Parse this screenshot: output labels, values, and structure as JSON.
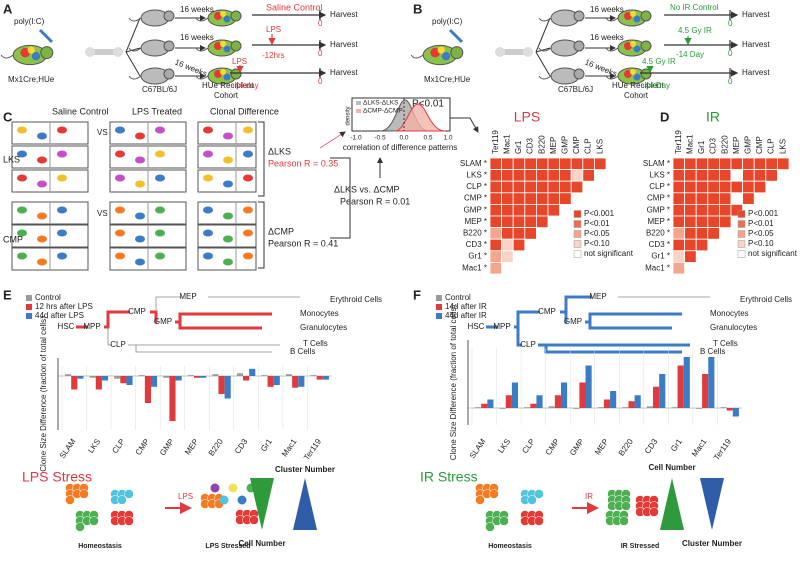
{
  "panel_a": {
    "label": "A",
    "injection": "poly(I:C)",
    "donor": "Mx1Cre;HUe",
    "durations": [
      "16 weeks",
      "16 weeks",
      "16 weeks"
    ],
    "strain": "C67BL/6J",
    "recipient": [
      "HUe Recipient",
      "Cohort"
    ],
    "arms": [
      {
        "treatment": "Saline Control",
        "time": "0",
        "harvest": "Harvest"
      },
      {
        "treatment": "LPS",
        "offset": "-12hrs",
        "time": "0",
        "harvest": "Harvest"
      },
      {
        "treatment": "LPS",
        "offset": "-44 day",
        "time": "0",
        "harvest": "Harvest"
      }
    ]
  },
  "panel_b": {
    "label": "B",
    "injection": "poly(I:C)",
    "donor": "Mx1Cre;HUe",
    "durations": [
      "16 weeks",
      "16 weeks",
      "16 weeks"
    ],
    "strain": "C67BL/6J",
    "recipient": [
      "HUe Recipient",
      "Cohort"
    ],
    "arms": [
      {
        "treatment": "No IR Control",
        "time": "0",
        "harvest": "Harvest"
      },
      {
        "treatment": "4.5 Gy IR",
        "offset": "-14 Day",
        "time": "0",
        "harvest": "Harvest"
      },
      {
        "treatment": "4.5 Gy IR",
        "offset": "-44 Day",
        "time": "0",
        "harvest": "Harvest"
      }
    ]
  },
  "panel_c": {
    "label": "C",
    "columns": [
      "Saline Control",
      "LPS Treated",
      "Clonal Difference"
    ],
    "rows": [
      "LKS",
      "CMP"
    ],
    "vs": [
      "VS",
      "VS"
    ],
    "lks_delta": "ΔLKS",
    "lks_r": "Pearson R = 0.35",
    "cmp_delta": "ΔCMP",
    "cmp_r": "Pearson R = 0.41",
    "cross": "ΔLKS vs. ΔCMP",
    "cross_r": "Pearson R = 0.01",
    "inset": {
      "y_label": "density",
      "legend": [
        "ΔLKS-ΔLKS",
        "ΔCMP-ΔCMP"
      ],
      "p": "P<0.01",
      "ticks": [
        "-1.0",
        "-0.5",
        "0.0",
        "0.5",
        "1.0"
      ],
      "x_label": "correlation of difference patterns"
    }
  },
  "panel_d": {
    "label": "D"
  },
  "significance_legend": [
    "P<0.001",
    "P<0.01",
    "P<0.05",
    "P<0.10",
    "not significant"
  ],
  "heatmaps": [
    {
      "title": "LPS",
      "rows": [
        "SLAM *",
        "LKS *",
        "CLP *",
        "CMP *",
        "GMP *",
        "MEP *",
        "B220 *",
        "CD3 *",
        "Gr1 *",
        "Mac1 *"
      ],
      "columns": [
        "Ter119",
        "Mac1",
        "Gr1",
        "CD3",
        "B220",
        "MEP",
        "GMP",
        "CMP",
        "CLP",
        "LKS"
      ],
      "cells": [
        [
          0,
          0,
          0,
          0,
          0,
          0,
          0,
          0,
          0,
          0
        ],
        [
          0,
          0,
          0,
          0,
          0,
          0,
          0,
          3,
          0
        ],
        [
          0,
          0,
          0,
          0,
          0,
          0,
          0,
          0
        ],
        [
          0,
          0,
          0,
          0,
          0,
          0,
          0
        ],
        [
          0,
          0,
          0,
          0,
          0,
          0
        ],
        [
          0,
          0,
          0,
          0,
          0
        ],
        [
          2,
          0,
          0,
          0
        ],
        [
          0,
          3,
          0
        ],
        [
          2,
          3
        ],
        [
          2
        ]
      ]
    },
    {
      "title": "IR",
      "rows": [
        "SLAM *",
        "LKS *",
        "CLP *",
        "CMP *",
        "GMP *",
        "MEP *",
        "B220 *",
        "CD3 *",
        "Gr1 *",
        "Mac1 *"
      ],
      "columns": [
        "Ter119",
        "Mac1",
        "Gr1",
        "CD3",
        "B220",
        "MEP",
        "GMP",
        "CMP",
        "CLP",
        "LKS"
      ],
      "cells": [
        [
          0,
          0,
          0,
          0,
          0,
          0,
          0,
          0,
          0,
          0
        ],
        [
          0,
          0,
          0,
          0,
          0,
          4,
          0,
          0,
          0
        ],
        [
          0,
          0,
          0,
          0,
          0,
          0,
          0,
          0
        ],
        [
          0,
          0,
          0,
          0,
          0,
          4,
          0
        ],
        [
          0,
          0,
          0,
          0,
          0,
          0
        ],
        [
          0,
          0,
          0,
          0,
          0
        ],
        [
          2,
          0,
          0,
          0
        ],
        [
          0,
          0,
          0
        ],
        [
          3,
          0
        ],
        [
          2
        ]
      ]
    }
  ],
  "chart_data": [
    {
      "type": "bar",
      "panel": "E",
      "y_label": "Clone Size Difference (fraction of total cells)",
      "categories": [
        "SLAM",
        "LKS",
        "CLP",
        "CMP",
        "GMP",
        "MEP",
        "B220",
        "CD3",
        "Gr1",
        "Mac1",
        "Ter119"
      ],
      "ylim": [
        -0.06,
        0.02
      ],
      "series": [
        {
          "name": "Control",
          "color": "#9a9a9a",
          "values": [
            0.002,
            -0.002,
            -0.003,
            0.001,
            -0.002,
            0.001,
            0.002,
            0.003,
            0.001,
            0.002,
            0.001
          ]
        },
        {
          "name": "12 hrs after LPS",
          "color": "#e0393e",
          "values": [
            -0.015,
            -0.015,
            -0.008,
            -0.03,
            -0.05,
            -0.002,
            -0.02,
            -0.005,
            -0.012,
            -0.013,
            -0.004
          ]
        },
        {
          "name": "44d after LPS",
          "color": "#3b7cc4",
          "values": [
            -0.003,
            -0.005,
            -0.01,
            -0.012,
            -0.005,
            -0.002,
            -0.025,
            0.008,
            -0.01,
            -0.012,
            -0.004
          ]
        }
      ]
    },
    {
      "type": "bar",
      "panel": "F",
      "y_label": "Clone Size Difference (fraction of total cells)",
      "categories": [
        "SLAM",
        "LKS",
        "CLP",
        "CMP",
        "GMP",
        "MEP",
        "B220",
        "CD3",
        "Gr1",
        "Mac1",
        "Ter119"
      ],
      "ylim": [
        -0.02,
        0.08
      ],
      "series": [
        {
          "name": "Control",
          "color": "#9a9a9a",
          "values": [
            0.001,
            -0.001,
            0.001,
            0.002,
            -0.001,
            0.001,
            0.001,
            0.002,
            0.001,
            -0.001,
            0.001
          ]
        },
        {
          "name": "14d after IR",
          "color": "#e0393e",
          "values": [
            0.005,
            0.015,
            0.005,
            0.015,
            0.03,
            0.01,
            0.008,
            0.025,
            0.05,
            0.04,
            -0.003
          ]
        },
        {
          "name": "44d after IR",
          "color": "#3b7cc4",
          "values": [
            0.01,
            0.03,
            0.015,
            0.03,
            0.05,
            0.02,
            0.015,
            0.04,
            0.06,
            0.06,
            -0.01
          ]
        }
      ]
    }
  ],
  "lineage": {
    "nodes": [
      "HSC",
      "MPP",
      "CMP",
      "CLP",
      "GMP",
      "MEP",
      "Erythroid Cells",
      "Monocytes",
      "Granulocytes",
      "T Cells",
      "B Cells"
    ]
  },
  "stress": [
    {
      "title": "LPS Stress",
      "agent": "LPS",
      "before": "Homeostasis",
      "after": "LPS Stressed",
      "cell": "Cell Number",
      "cluster": "Cluster Number"
    },
    {
      "title": "IR Stress",
      "agent": "IR",
      "before": "Homeostasis",
      "after": "IR Stressed",
      "cell": "Cell Number",
      "cluster": "Cluster Number"
    }
  ]
}
